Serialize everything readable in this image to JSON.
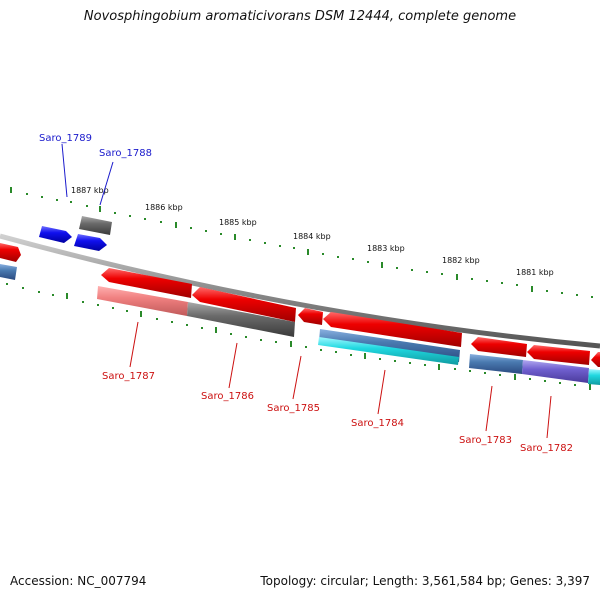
{
  "title": "Novosphingobium aromaticivorans DSM 12444, complete genome",
  "footer": {
    "accession": "Accession: NC_007794",
    "summary": "Topology: circular; Length: 3,561,584 bp; Genes: 3,397"
  },
  "colors": {
    "backbone": "#8a8a8a",
    "tick": "#2a8a2a",
    "forward_label": "#1a1acc",
    "reverse_label": "#cc1111",
    "gene_red": "#e00000",
    "gene_blue": "#1010e0",
    "gene_gray": "#666666",
    "gene_pink": "#f08080",
    "gene_cyan": "#20d8e0",
    "gene_steel": "#4a7ab0",
    "gene_purple": "#7060d0"
  },
  "kbp_markers": [
    "1887 kbp",
    "1886 kbp",
    "1885 kbp",
    "1884 kbp",
    "1883 kbp",
    "1882 kbp",
    "1881 kbp"
  ],
  "forward_genes": [
    {
      "label": "Saro_1789",
      "color": "blue"
    },
    {
      "label": "Saro_1788",
      "color": "blue"
    }
  ],
  "reverse_genes": [
    {
      "label": "Saro_1787"
    },
    {
      "label": "Saro_1786"
    },
    {
      "label": "Saro_1785"
    },
    {
      "label": "Saro_1784"
    },
    {
      "label": "Saro_1783"
    },
    {
      "label": "Saro_1782"
    }
  ]
}
